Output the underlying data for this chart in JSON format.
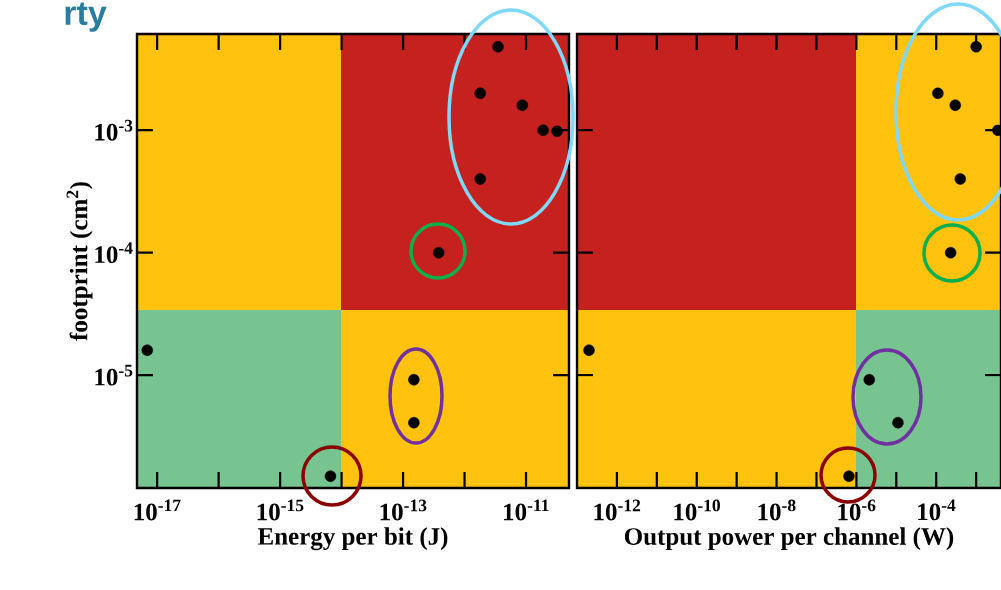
{
  "chart_data": [
    {
      "type": "scatter",
      "title": "rty",
      "xlabel": "Energy per bit (J)",
      "ylabel": "footprint (cm$^{2}$)",
      "log": "xy",
      "grid": false,
      "marker": "circle",
      "x": [
        3.5e-12,
        1.8e-12,
        8.7e-12,
        1.9e-11,
        3.2e-11,
        1.8e-12,
        3.8e-13,
        6.9e-18,
        1.5e-13,
        1.5e-13,
        6.6e-15
      ],
      "values": [
        0.0048,
        0.002,
        0.0016,
        0.001,
        0.00098,
        0.0004,
        0.0001,
        1.6e-05,
        9.2e-06,
        4.1e-06,
        1.5e-06
      ],
      "color": "#000000",
      "xlim": [
        4.7e-18,
        5e-11
      ],
      "ylim": [
        1.2e-06,
        0.0061
      ],
      "xticks": [
        {
          "value": 1e-17,
          "label": "10$^{-17}$"
        },
        {
          "value": 1e-16,
          "label": null
        },
        {
          "value": 1e-15,
          "label": "10$^{-15}$"
        },
        {
          "value": 1e-14,
          "label": null
        },
        {
          "value": 1e-13,
          "label": "10$^{-13}$"
        },
        {
          "value": 1e-12,
          "label": null
        },
        {
          "value": 1e-11,
          "label": "10$^{-11}$"
        }
      ],
      "yticks": [
        {
          "value": 1e-05,
          "label": "10$^{-5}$"
        },
        {
          "value": 0.0001,
          "label": "10$^{-4}$"
        },
        {
          "value": 0.001,
          "label": "10$^{-3}$"
        }
      ]
    },
    {
      "type": "scatter",
      "xlabel": "Output power per channel (W)",
      "log": "xy",
      "grid": false,
      "marker": "circle",
      "tick_labels": "x",
      "x": [
        0.001,
        0.00011,
        0.0003,
        0.0035,
        0.0004,
        0.00023,
        2e-13,
        2.1e-06,
        1.1e-05,
        6.5e-07
      ],
      "values": [
        0.0048,
        0.002,
        0.0016,
        0.001,
        0.0004,
        0.0001,
        1.6e-05,
        9.2e-06,
        4.1e-06,
        1.5e-06
      ],
      "color": "#000000",
      "xlim": [
        1e-13,
        0.0042
      ],
      "ylim": [
        1.2e-06,
        0.0061
      ],
      "xticks": [
        {
          "value": 1e-12,
          "label": "10$^{-12}$"
        },
        {
          "value": 1e-11,
          "label": null
        },
        {
          "value": 1e-10,
          "label": "10$^{-10}$"
        },
        {
          "value": 1e-09,
          "label": null
        },
        {
          "value": 1e-08,
          "label": "10$^{-8}$"
        },
        {
          "value": 1e-07,
          "label": null
        },
        {
          "value": 1e-06,
          "label": "10$^{-6}$"
        },
        {
          "value": 1e-05,
          "label": null
        },
        {
          "value": 0.0001,
          "label": "10$^{-4}$"
        },
        {
          "value": 0.001,
          "label": null
        }
      ],
      "yticks": [
        {
          "value": 1e-05,
          "label": null
        },
        {
          "value": 0.0001,
          "label": null
        },
        {
          "value": 0.001,
          "label": null
        }
      ]
    }
  ]
}
